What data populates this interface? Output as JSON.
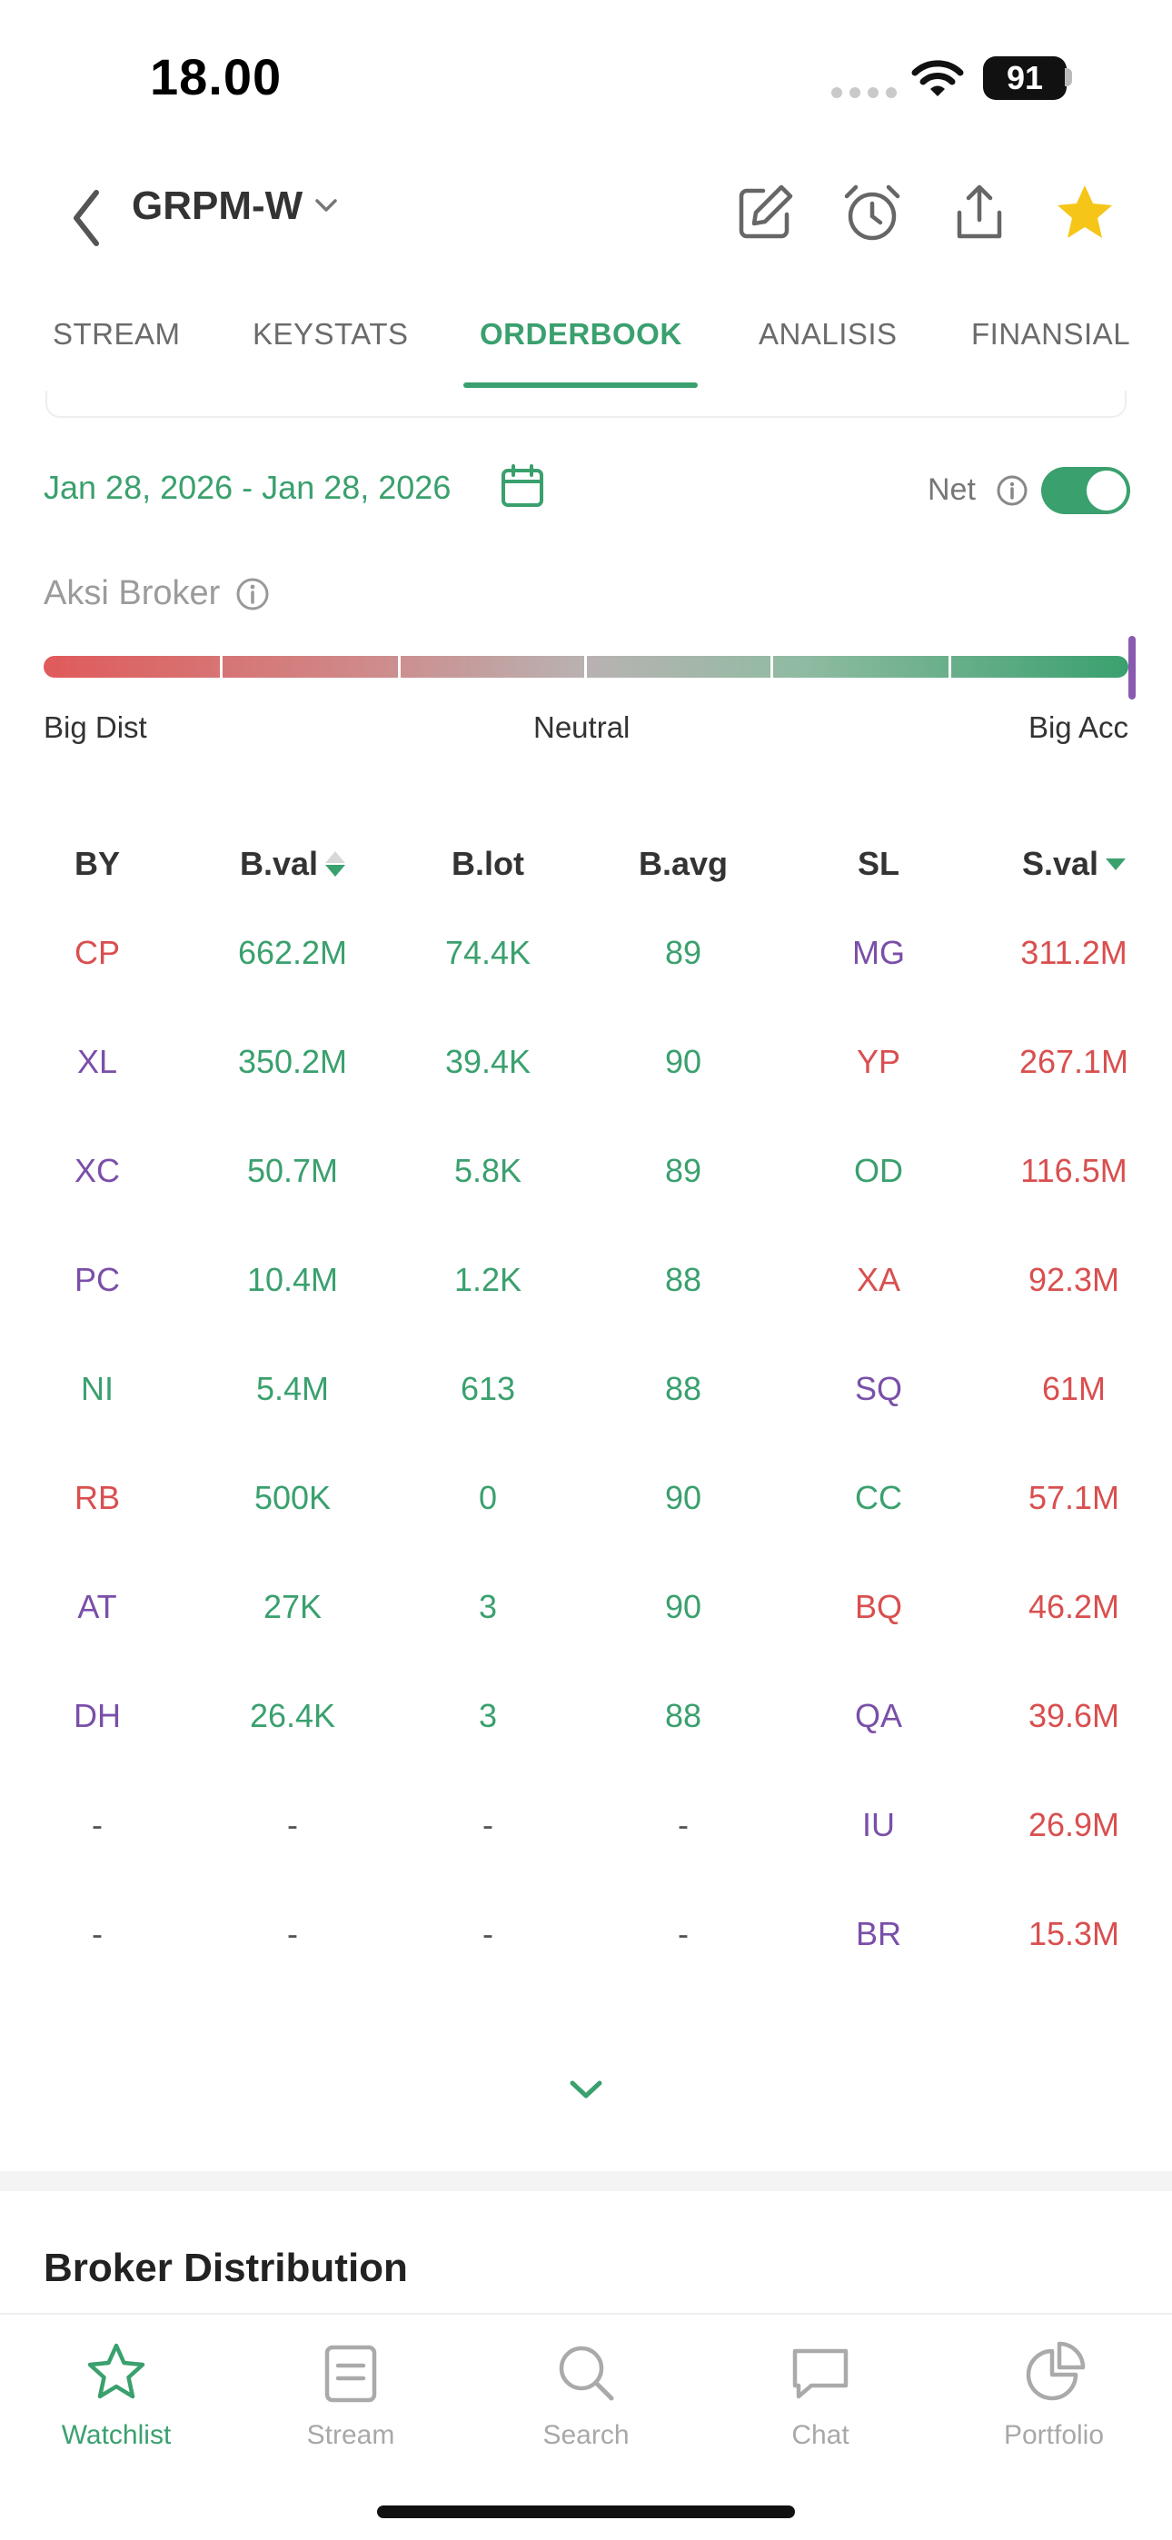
{
  "status_bar": {
    "time": "18.00",
    "battery": "91"
  },
  "header": {
    "ticker": "GRPM-W",
    "icons": [
      "back-icon",
      "chevron-down-icon",
      "edit-icon",
      "alarm-icon",
      "share-icon",
      "star-icon"
    ],
    "star_color": "#f5c518"
  },
  "tabs": [
    {
      "label": "STREAM"
    },
    {
      "label": "KEYSTATS"
    },
    {
      "label": "ORDERBOOK",
      "active": true
    },
    {
      "label": "ANALISIS"
    },
    {
      "label": "FINANSIAL"
    }
  ],
  "filter": {
    "date_range": "Jan 28, 2026 - Jan 28, 2026",
    "net_label": "Net",
    "net_enabled": true
  },
  "aksi_broker": {
    "label": "Aksi Broker",
    "scale": {
      "left": "Big Dist",
      "center": "Neutral",
      "right": "Big Acc"
    },
    "level": "Big Acc"
  },
  "table": {
    "headers": {
      "by": "BY",
      "bval": "B.val",
      "blot": "B.lot",
      "bavg": "B.avg",
      "sl": "SL",
      "sval": "S.val"
    },
    "rows": [
      {
        "by": "CP",
        "bval": "662.2M",
        "blot": "74.4K",
        "bavg": "89",
        "sl": "MG",
        "sval": "311.2M"
      },
      {
        "by": "XL",
        "bval": "350.2M",
        "blot": "39.4K",
        "bavg": "90",
        "sl": "YP",
        "sval": "267.1M"
      },
      {
        "by": "XC",
        "bval": "50.7M",
        "blot": "5.8K",
        "bavg": "89",
        "sl": "OD",
        "sval": "116.5M"
      },
      {
        "by": "PC",
        "bval": "10.4M",
        "blot": "1.2K",
        "bavg": "88",
        "sl": "XA",
        "sval": "92.3M"
      },
      {
        "by": "NI",
        "bval": "5.4M",
        "blot": "613",
        "bavg": "88",
        "sl": "SQ",
        "sval": "61M"
      },
      {
        "by": "RB",
        "bval": "500K",
        "blot": "0",
        "bavg": "90",
        "sl": "CC",
        "sval": "57.1M"
      },
      {
        "by": "AT",
        "bval": "27K",
        "blot": "3",
        "bavg": "90",
        "sl": "BQ",
        "sval": "46.2M"
      },
      {
        "by": "DH",
        "bval": "26.4K",
        "blot": "3",
        "bavg": "88",
        "sl": "QA",
        "sval": "39.6M"
      },
      {
        "by": "-",
        "bval": "-",
        "blot": "-",
        "bavg": "-",
        "sl": "IU",
        "sval": "26.9M"
      },
      {
        "by": "-",
        "bval": "-",
        "blot": "-",
        "bavg": "-",
        "sl": "BR",
        "sval": "15.3M"
      }
    ],
    "broker_colors": {
      "by": [
        "red",
        "purple",
        "purple",
        "purple",
        "green",
        "red",
        "purple",
        "purple",
        "gray",
        "gray"
      ],
      "sl": [
        "purple",
        "red",
        "green",
        "red",
        "purple",
        "green",
        "red",
        "purple",
        "purple",
        "purple"
      ]
    },
    "colors": {
      "green": "#3aa06e",
      "red": "#d94f4f",
      "purple": "#7a4fa8"
    }
  },
  "section": {
    "title": "Broker Distribution"
  },
  "bottom_nav": [
    {
      "label": "Watchlist",
      "icon": "star-outline-icon",
      "active": true
    },
    {
      "label": "Stream",
      "icon": "document-icon"
    },
    {
      "label": "Search",
      "icon": "search-icon"
    },
    {
      "label": "Chat",
      "icon": "chat-icon"
    },
    {
      "label": "Portfolio",
      "icon": "pie-chart-icon"
    }
  ]
}
